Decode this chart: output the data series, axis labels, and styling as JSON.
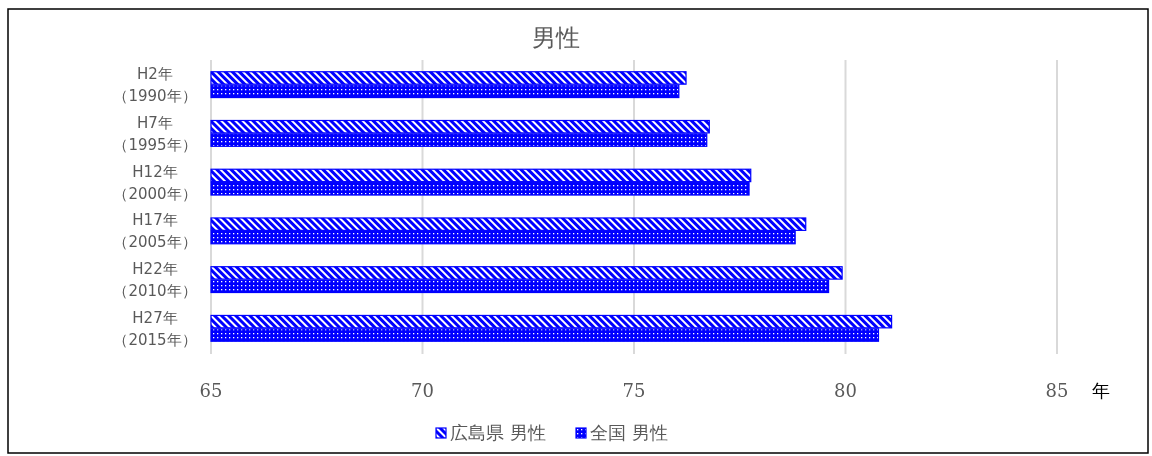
{
  "chart_data": {
    "type": "bar",
    "orientation": "horizontal",
    "title": "男性",
    "xlabel": "年",
    "categories": [
      "H2年（1990年）",
      "H7年（1995年）",
      "H12年（2000年）",
      "H17年（2005年）",
      "H22年（2010年）",
      "H27年（2015年）"
    ],
    "series": [
      {
        "name": "広島県 男性",
        "color": "#0000ff",
        "values": [
          76.23,
          76.78,
          77.76,
          79.06,
          79.92,
          81.09
        ]
      },
      {
        "name": "全国 男性",
        "color": "#0000ff",
        "values": [
          76.06,
          76.72,
          77.72,
          78.81,
          79.6,
          80.78
        ]
      }
    ],
    "xlim": [
      65,
      85
    ],
    "xticks": [
      65,
      70,
      75,
      80,
      85
    ],
    "grid": "x",
    "legend": "bottom"
  }
}
